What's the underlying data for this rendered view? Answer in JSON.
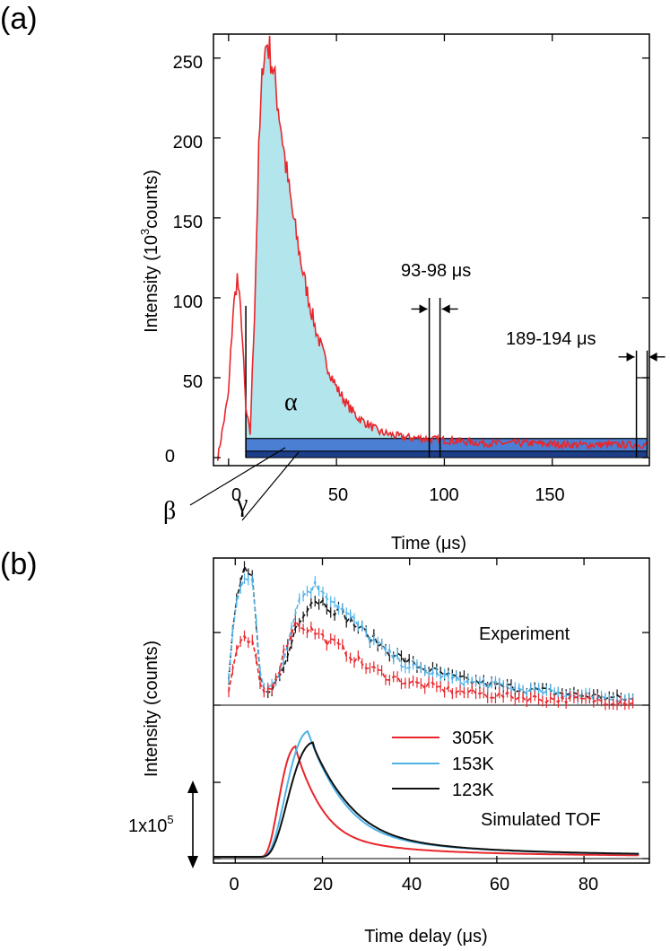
{
  "panel_a": {
    "label": "(a)",
    "ylabel": "Intensity (10",
    "ylabel_sup": "3",
    "ylabel_rest": "counts)",
    "xlabel": "Time (μs)",
    "yticks": [
      "0",
      "50",
      "100",
      "150",
      "200",
      "250"
    ],
    "xticks": [
      "0",
      "50",
      "100",
      "150"
    ],
    "annotation_1": "93-98 μs",
    "annotation_2": "189-194  μs",
    "region_alpha": "α",
    "region_beta": "β",
    "region_gamma": "γ"
  },
  "panel_b": {
    "label": "(b)",
    "ylabel": "Intensity (counts)",
    "xlabel": "Time delay (μs)",
    "xticks": [
      "0",
      "20",
      "40",
      "60",
      "80"
    ],
    "experiment_label": "Experiment",
    "simulated_label": "Simulated TOF",
    "scale_label": "1x10",
    "scale_sup": "5"
  },
  "legend": [
    {
      "name": "305K",
      "color": "#e8262b"
    },
    {
      "name": "153K",
      "color": "#4fb3e8"
    },
    {
      "name": "123K",
      "color": "#111111"
    }
  ],
  "chart_data": [
    {
      "type": "area",
      "panel": "(a)",
      "xlabel": "Time (μs)",
      "ylabel": "Intensity (10^3 counts)",
      "xlim": [
        -7,
        195
      ],
      "ylim": [
        -5,
        265
      ],
      "colors": {
        "line": "#e8262b",
        "alpha_fill": "#b3e5ec",
        "beta_fill": "#4a7fd4",
        "gamma_fill": "#1d3f8a"
      },
      "x": [
        -5,
        0,
        2,
        4,
        6,
        8,
        10,
        12,
        14,
        16,
        18,
        20,
        22,
        24,
        26,
        28,
        30,
        35,
        40,
        45,
        50,
        55,
        60,
        70,
        80,
        90,
        100,
        120,
        140,
        160,
        180,
        194
      ],
      "y": [
        0,
        40,
        90,
        113,
        85,
        30,
        15,
        90,
        190,
        250,
        260,
        248,
        230,
        210,
        188,
        168,
        150,
        112,
        82,
        60,
        44,
        33,
        25,
        16,
        13,
        12,
        11,
        9,
        9,
        8,
        8,
        8
      ],
      "regions": {
        "alpha_range_us": [
          8,
          194
        ],
        "beta_level": 12,
        "gamma_level": 4
      },
      "markers_us": [
        93,
        98,
        189,
        194
      ]
    },
    {
      "type": "line",
      "panel": "(b)",
      "xlabel": "Time delay (μs)",
      "ylabel": "Intensity (counts)",
      "xlim": [
        -5,
        95
      ],
      "experiment": {
        "x": [
          -2,
          0,
          2,
          4,
          6,
          8,
          10,
          12,
          14,
          16,
          18,
          20,
          25,
          30,
          35,
          40,
          50,
          60,
          70,
          80,
          92
        ],
        "series": [
          {
            "name": "305K",
            "values": [
              0,
              0.8,
              1.0,
              0.95,
              0.2,
              0.25,
              0.55,
              1.0,
              1.3,
              1.2,
              1.15,
              1.05,
              0.85,
              0.6,
              0.45,
              0.35,
              0.22,
              0.15,
              0.1,
              0.08,
              0.05
            ]
          },
          {
            "name": "153K",
            "values": [
              0,
              1.6,
              2.05,
              1.9,
              0.25,
              0.3,
              0.5,
              0.95,
              1.55,
              1.75,
              1.85,
              1.8,
              1.45,
              1.1,
              0.8,
              0.6,
              0.4,
              0.3,
              0.2,
              0.15,
              0.08
            ]
          },
          {
            "name": "123K",
            "values": [
              0,
              1.6,
              2.05,
              1.9,
              0.2,
              0.25,
              0.4,
              0.75,
              1.25,
              1.5,
              1.65,
              1.6,
              1.4,
              1.1,
              0.85,
              0.65,
              0.42,
              0.3,
              0.22,
              0.15,
              0.08
            ]
          }
        ]
      },
      "simulated": {
        "series": [
          {
            "name": "305K",
            "peak_x": 14,
            "peak": 1.45,
            "rise": 6
          },
          {
            "name": "153K",
            "peak_x": 17,
            "peak": 1.65,
            "rise": 8
          },
          {
            "name": "123K",
            "peak_x": 18,
            "peak": 1.5,
            "rise": 9
          }
        ],
        "scale_bar": "1x10^5"
      }
    }
  ]
}
